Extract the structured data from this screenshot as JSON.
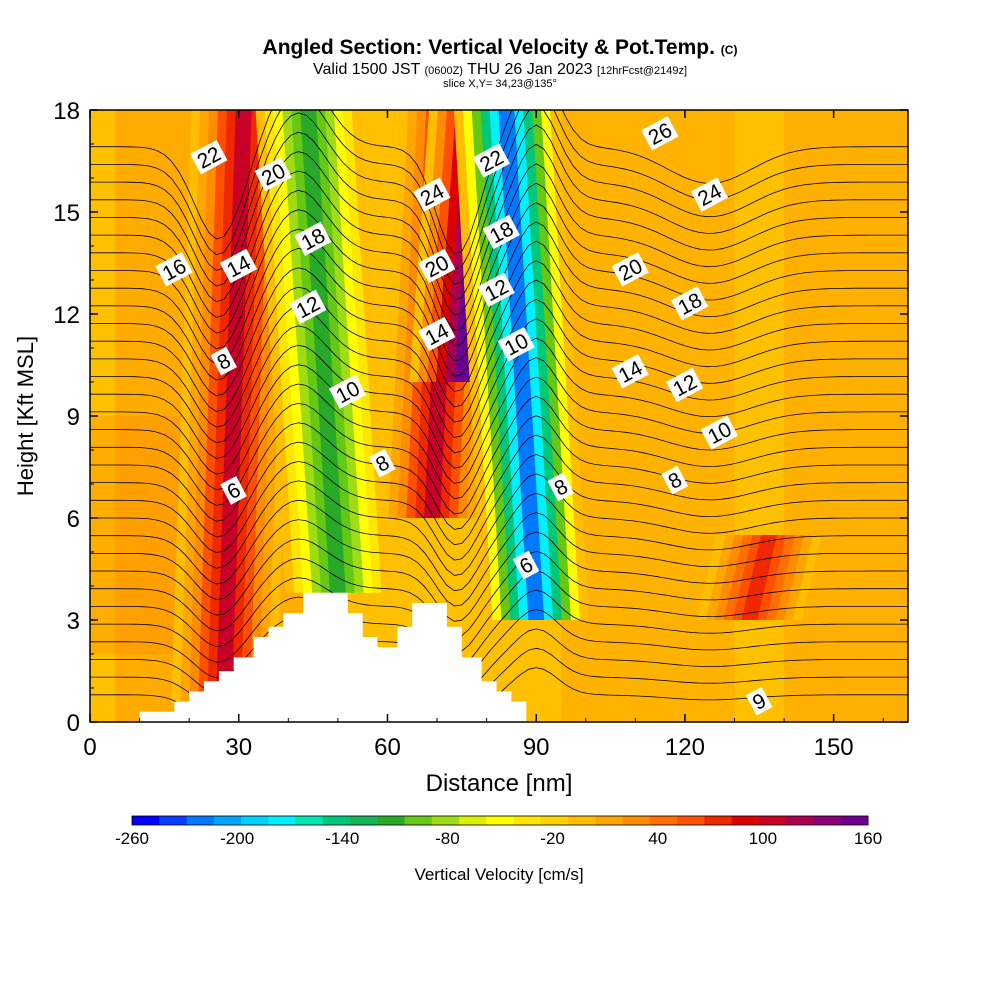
{
  "header": {
    "title": "Angled Section: Vertical Velocity & Pot.Temp.",
    "copyright": "(C)",
    "valid_main": "Valid 1500 JST",
    "valid_utc": "(0600Z)",
    "valid_date": "THU 26 Jan 2023",
    "forecast": "[12hrFcst@2149z]",
    "slice": "slice X,Y= 34,23@135°"
  },
  "chart_data": {
    "type": "heatmap",
    "xlabel": "Distance [nm]",
    "ylabel": "Height [Kft MSL]",
    "xlim": [
      0,
      165
    ],
    "ylim": [
      0,
      18
    ],
    "xticks": [
      0,
      30,
      60,
      90,
      120,
      150
    ],
    "yticks": [
      0,
      3,
      6,
      9,
      12,
      15,
      18
    ],
    "terrain_profile": {
      "x": [
        0,
        10,
        10,
        17,
        17,
        20,
        20,
        23,
        23,
        26,
        26,
        29,
        29,
        33,
        33,
        36,
        36,
        39,
        39,
        43,
        43,
        52,
        52,
        55,
        55,
        58,
        58,
        62,
        62,
        65,
        65,
        72,
        72,
        75,
        75,
        79,
        79,
        82,
        82,
        85,
        85,
        88,
        88,
        165
      ],
      "y": [
        0,
        0,
        0.3,
        0.3,
        0.6,
        0.6,
        0.9,
        0.9,
        1.2,
        1.2,
        1.5,
        1.5,
        1.9,
        1.9,
        2.5,
        2.5,
        2.8,
        2.8,
        3.2,
        3.2,
        3.8,
        3.8,
        3.2,
        3.2,
        2.5,
        2.5,
        2.2,
        2.2,
        2.8,
        2.8,
        3.5,
        3.5,
        2.8,
        2.8,
        1.9,
        1.9,
        1.2,
        1.2,
        0.9,
        0.9,
        0.6,
        0.6,
        0,
        0
      ]
    },
    "vertical_velocity_cores": [
      {
        "x": 29,
        "ymin": 0.5,
        "ymax": 18,
        "value": 100
      },
      {
        "x": 47,
        "ymin": 3.8,
        "ymax": 18,
        "value": -120
      },
      {
        "x": 71,
        "ymin": 6,
        "ymax": 18,
        "value": 100
      },
      {
        "x": 77,
        "ymin": 10,
        "ymax": 18,
        "value": 160
      },
      {
        "x": 87,
        "ymin": 3,
        "ymax": 18,
        "value": -220
      },
      {
        "x": 135,
        "ymin": 3,
        "ymax": 5.5,
        "value": 80
      }
    ],
    "theta_contour_labels": [
      {
        "text": "22",
        "x": 24,
        "y": 16.6
      },
      {
        "text": "20",
        "x": 37,
        "y": 16.1
      },
      {
        "text": "16",
        "x": 17,
        "y": 13.3
      },
      {
        "text": "14",
        "x": 30,
        "y": 13.4
      },
      {
        "text": "18",
        "x": 45,
        "y": 14.2
      },
      {
        "text": "12",
        "x": 44,
        "y": 12.2
      },
      {
        "text": "8",
        "x": 27,
        "y": 10.6
      },
      {
        "text": "10",
        "x": 52,
        "y": 9.7
      },
      {
        "text": "6",
        "x": 29,
        "y": 6.8
      },
      {
        "text": "8",
        "x": 59,
        "y": 7.6
      },
      {
        "text": "24",
        "x": 69,
        "y": 15.5
      },
      {
        "text": "22",
        "x": 81,
        "y": 16.5
      },
      {
        "text": "18",
        "x": 83,
        "y": 14.4
      },
      {
        "text": "20",
        "x": 70,
        "y": 13.4
      },
      {
        "text": "12",
        "x": 82,
        "y": 12.7
      },
      {
        "text": "14",
        "x": 70,
        "y": 11.4
      },
      {
        "text": "10",
        "x": 86,
        "y": 11.1
      },
      {
        "text": "8",
        "x": 95,
        "y": 6.9
      },
      {
        "text": "6",
        "x": 88,
        "y": 4.6
      },
      {
        "text": "26",
        "x": 115,
        "y": 17.3
      },
      {
        "text": "24",
        "x": 125,
        "y": 15.5
      },
      {
        "text": "20",
        "x": 109,
        "y": 13.3
      },
      {
        "text": "18",
        "x": 121,
        "y": 12.3
      },
      {
        "text": "14",
        "x": 109,
        "y": 10.3
      },
      {
        "text": "12",
        "x": 120,
        "y": 9.9
      },
      {
        "text": "10",
        "x": 127,
        "y": 8.5
      },
      {
        "text": "8",
        "x": 118,
        "y": 7.1
      },
      {
        "text": "9",
        "x": 135,
        "y": 0.6
      }
    ]
  },
  "colorbar": {
    "label": "Vertical Velocity [cm/s]",
    "tick_labels": [
      "-260",
      "-200",
      "-140",
      "-80",
      "-20",
      "40",
      "100",
      "160"
    ],
    "min": -260,
    "max": 160,
    "colors": [
      "#0000ff",
      "#0a3cff",
      "#0078ff",
      "#00a5ff",
      "#00d2ff",
      "#00f0ff",
      "#00e6b4",
      "#00c878",
      "#14b45a",
      "#28aa28",
      "#64c814",
      "#a0dc14",
      "#dcf000",
      "#ffff00",
      "#ffe600",
      "#ffd200",
      "#ffbe00",
      "#ffa500",
      "#ff8c00",
      "#ff6e00",
      "#ff5000",
      "#f02800",
      "#dc0000",
      "#c80028",
      "#aa0050",
      "#8c0078",
      "#6e0090"
    ]
  }
}
